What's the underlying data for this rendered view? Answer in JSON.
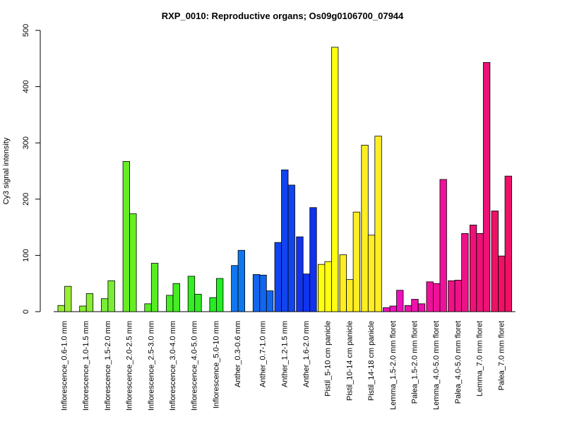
{
  "chart_data": {
    "type": "bar",
    "title": "RXP_0010: Reproductive organs; Os09g0106700_07944",
    "ylabel": "Cy3 signal intensity",
    "xlabel": "",
    "ylim": [
      0,
      500
    ],
    "yticks": [
      0,
      100,
      200,
      300,
      400,
      500
    ],
    "grid": false,
    "legend": "none",
    "groups": [
      {
        "label": "Inflorescence_0.6-1.0 mm",
        "color": "#99ee33",
        "values": [
          11,
          45
        ]
      },
      {
        "label": "Inflorescence_1.0-1.5 mm",
        "color": "#88ee33",
        "values": [
          10,
          32
        ]
      },
      {
        "label": "Inflorescence_1.5-2.0 mm",
        "color": "#77ee33",
        "values": [
          23,
          55
        ]
      },
      {
        "label": "Inflorescence_2.0-2.5 mm",
        "color": "#66ee22",
        "values": [
          267,
          174
        ]
      },
      {
        "label": "Inflorescence_2.5-3.0 mm",
        "color": "#55ee22",
        "values": [
          14,
          86
        ]
      },
      {
        "label": "Inflorescence_3.0-4.0 mm",
        "color": "#44ee22",
        "values": [
          29,
          50
        ]
      },
      {
        "label": "Inflorescence_4.0-5.0 mm",
        "color": "#33ee22",
        "values": [
          63,
          31
        ]
      },
      {
        "label": "Inflorescence_5.0-10 mm",
        "color": "#22ee22",
        "values": [
          25,
          59
        ]
      },
      {
        "label": "Anther_0.3-0.6 mm",
        "color": "#1177ee",
        "values": [
          82,
          109
        ]
      },
      {
        "label": "Anther_0.7-1.0 mm",
        "color": "#1166ee",
        "values": [
          66,
          65,
          37
        ]
      },
      {
        "label": "Anther_1.2-1.5 mm",
        "color": "#1144ee",
        "values": [
          123,
          252,
          225
        ]
      },
      {
        "label": "Anther_1.6-2.0 mm",
        "color": "#1133ee",
        "values": [
          133,
          67,
          185
        ]
      },
      {
        "label": "Pistil_5-10 cm panicle",
        "color": "#ffff11",
        "values": [
          84,
          89,
          470
        ]
      },
      {
        "label": "Pistil_10-14 cm panicle",
        "color": "#ffee22",
        "values": [
          101,
          57,
          177
        ]
      },
      {
        "label": "Pistil_14-18 cm panicle",
        "color": "#ffee22",
        "values": [
          296,
          136,
          312
        ]
      },
      {
        "label": "Lemma_1.5-2.0 mm floret",
        "color": "#ee11bb",
        "values": [
          7,
          10,
          38
        ]
      },
      {
        "label": "Palea_1.5-2.0 mm floret",
        "color": "#ee11aa",
        "values": [
          11,
          22,
          14
        ]
      },
      {
        "label": "Lemma_4.0-5.0 mm floret",
        "color": "#ee1199",
        "values": [
          53,
          50,
          235
        ]
      },
      {
        "label": "Palea_4.0-5.0 mm floret",
        "color": "#ee1188",
        "values": [
          55,
          56,
          139
        ]
      },
      {
        "label": "Lemma_7.0 mm floret",
        "color": "#ee1177",
        "values": [
          154,
          139,
          443
        ]
      },
      {
        "label": "Palea_7.0 mm floret",
        "color": "#ee1166",
        "values": [
          179,
          99,
          241
        ]
      }
    ]
  }
}
